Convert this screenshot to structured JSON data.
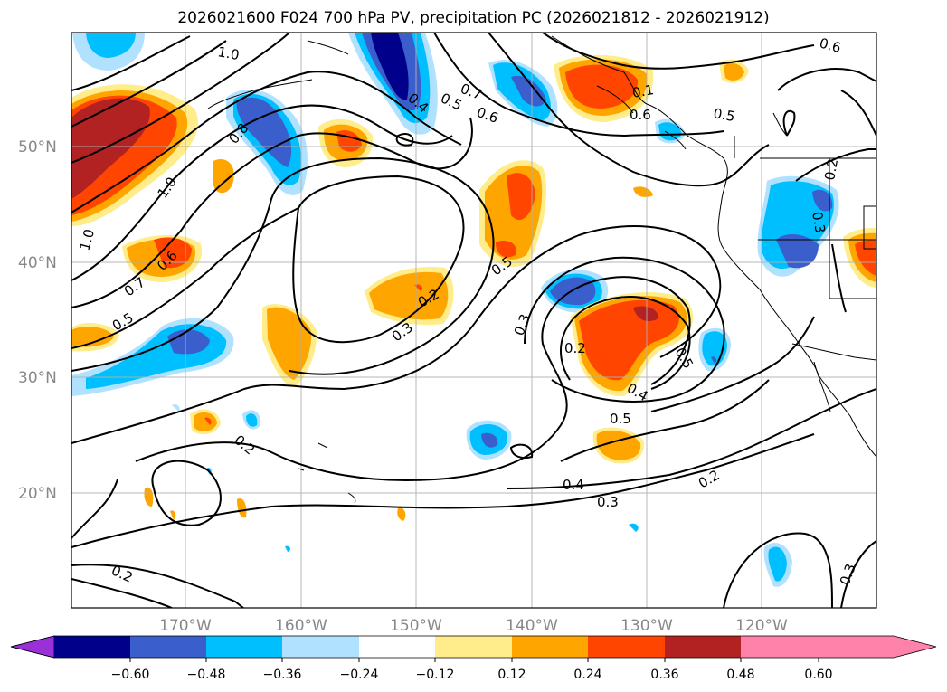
{
  "title": "2026021600 F024 700 hPa PV, precipitation PC (2026021812 - 2026021912)",
  "lat_labels": [
    "50°N",
    "40°N",
    "30°N",
    "20°N"
  ],
  "lon_labels": [
    "170°W",
    "160°W",
    "150°W",
    "140°W",
    "130°W",
    "120°W"
  ],
  "contour_labels": [
    "1.0",
    "0.6",
    "0.7",
    "0.5",
    "0.6",
    "0.4",
    "0.1",
    "0.5",
    "0.6",
    "0.2",
    "0.3",
    "0.8",
    "1.0",
    "0.6",
    "0.7",
    "1.0",
    "0.5",
    "0.2",
    "0.3",
    "0.5",
    "0.3",
    "0.2",
    "0.4",
    "0.5",
    "0.5",
    "0.2",
    "0.4",
    "0.3",
    "0.2",
    "0.2",
    "0.3"
  ],
  "colorbar": {
    "ticks": [
      "−0.60",
      "−0.48",
      "−0.36",
      "−0.24",
      "−0.12",
      "0.12",
      "0.24",
      "0.36",
      "0.48",
      "0.60"
    ],
    "colors": [
      "#9b30d9",
      "#00008b",
      "#3a5fcd",
      "#00bfff",
      "#b0e2ff",
      "#ffffff",
      "#ffec8b",
      "#ffa500",
      "#ff4500",
      "#b22222",
      "#ff82ab"
    ]
  },
  "shading_colors": {
    "neg1": "#b0e2ff",
    "neg2": "#00bfff",
    "neg3": "#3a5fcd",
    "neg4": "#00008b",
    "pos1": "#ffec8b",
    "pos2": "#ffa500",
    "pos3": "#ff4500",
    "pos4": "#b22222"
  }
}
